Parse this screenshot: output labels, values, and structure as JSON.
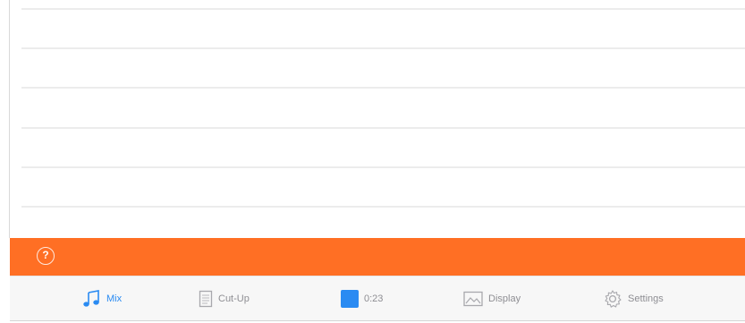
{
  "help": {
    "glyph": "?"
  },
  "tabs": {
    "mix": {
      "label": "Mix",
      "icon": "music-note-icon"
    },
    "cutup": {
      "label": "Cut-Up",
      "icon": "document-icon"
    },
    "timer": {
      "label": "0:23",
      "icon": "stop-square-icon"
    },
    "display": {
      "label": "Display",
      "icon": "image-icon"
    },
    "settings": {
      "label": "Settings",
      "icon": "gear-icon"
    }
  },
  "colors": {
    "accent": "#2a8bf2",
    "orange_bar": "#ff6f24",
    "inactive": "#8e8e93"
  }
}
